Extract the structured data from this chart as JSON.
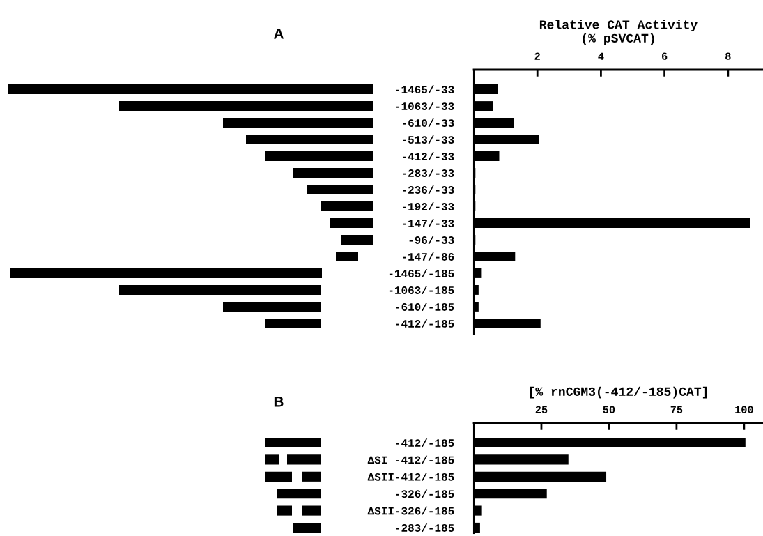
{
  "chart_data": [
    {
      "type": "bar",
      "orientation": "horizontal",
      "annotations": [
        "A"
      ],
      "xlabel": "Relative CAT Activity\n(% pSVCAT)",
      "categories": [
        "-1465/-33",
        "-1063/-33",
        "-610/-33",
        "-513/-33",
        "-412/-33",
        "-283/-33",
        "-236/-33",
        "-192/-33",
        "-147/-33",
        "-96/-33",
        "-147/-86",
        "-1465/-185",
        "-1063/-185",
        "-610/-185",
        "-412/-185"
      ],
      "xlim": [
        0,
        9.1
      ],
      "xticks": [
        2,
        4,
        6,
        8
      ],
      "series": [
        {
          "color": "#000000",
          "values": [
            0.75,
            0.6,
            1.25,
            2.05,
            0.8,
            0.05,
            0.05,
            0.05,
            8.7,
            0.05,
            1.3,
            0.25,
            0.15,
            0.15,
            2.1
          ]
        }
      ]
    },
    {
      "type": "bar",
      "orientation": "horizontal",
      "annotations": [
        "B"
      ],
      "xlabel": "[% rnCGM3(-412/-185)CAT]",
      "categories": [
        "-412/-185",
        "ΔSI -412/-185",
        "ΔSII-412/-185",
        "-326/-185",
        "ΔSII-326/-185",
        "-283/-185"
      ],
      "xlim": [
        0,
        107
      ],
      "xticks": [
        25,
        50,
        75,
        100
      ],
      "series": [
        {
          "color": "#000000",
          "values": [
            100.5,
            35,
            49,
            27,
            3,
            2.3
          ]
        }
      ]
    }
  ]
}
